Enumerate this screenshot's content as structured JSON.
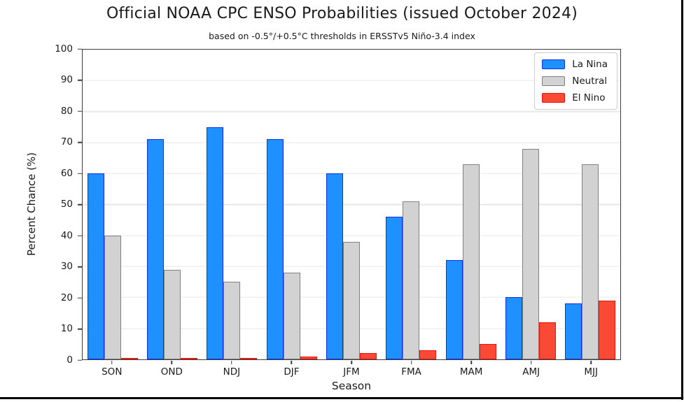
{
  "chart_data": {
    "type": "bar",
    "title": "Official NOAA CPC ENSO Probabilities (issued October 2024)",
    "subtitle": "based on -0.5°/+0.5°C thresholds in ERSSTv5 Niño-3.4 index",
    "categories": [
      "SON",
      "OND",
      "NDJ",
      "DJF",
      "JFM",
      "FMA",
      "MAM",
      "AMJ",
      "MJJ"
    ],
    "series": [
      {
        "name": "La Nina",
        "fill": "#1e90ff",
        "edge": "#1130ee",
        "values": [
          60,
          71,
          75,
          71,
          60,
          46,
          32,
          20,
          18
        ]
      },
      {
        "name": "Neutral",
        "fill": "#d2d2d2",
        "edge": "#808080",
        "values": [
          40,
          29,
          25,
          28,
          38,
          51,
          63,
          68,
          63
        ]
      },
      {
        "name": "El Nino",
        "fill": "#fa4a36",
        "edge": "#e8170b",
        "values": [
          0,
          0,
          0,
          1,
          2,
          3,
          5,
          12,
          19
        ]
      }
    ],
    "xlabel": "Season",
    "ylabel": "Percent Chance (%)",
    "ylim": [
      0,
      100
    ],
    "yticks": [
      0,
      10,
      20,
      30,
      40,
      50,
      60,
      70,
      80,
      90,
      100
    ],
    "grid": true,
    "legend_position": "upper right"
  },
  "frame": {
    "border_color": "#000000"
  }
}
